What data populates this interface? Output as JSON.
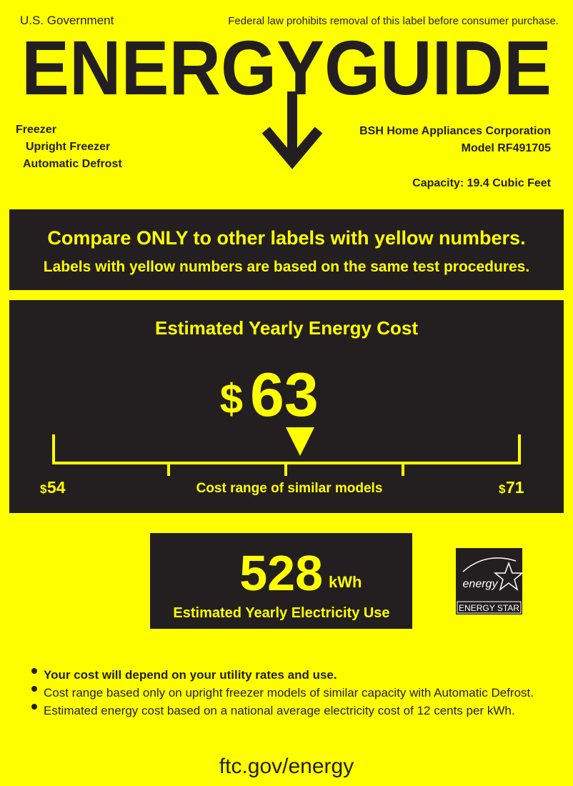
{
  "header": {
    "left": "U.S. Government",
    "right": "Federal law prohibits removal of this label before consumer purchase.",
    "title": "ENERGYGUIDE"
  },
  "product": {
    "lines": [
      "Freezer",
      "Upright Freezer",
      "Automatic Defrost"
    ]
  },
  "manufacturer": {
    "name": "BSH Home Appliances Corporation",
    "model": "Model RF491705",
    "capacity": "Capacity: 19.4 Cubic Feet"
  },
  "notice": {
    "title": "Compare ONLY to other labels with yellow numbers.",
    "subtitle": "Labels with yellow numbers are based on the same test procedures."
  },
  "cost": {
    "title": "Estimated Yearly Energy Cost",
    "currency": "$",
    "amount": "63",
    "range_low": {
      "currency": "$",
      "amount": "54"
    },
    "range_label": "Cost range of similar models",
    "range_high": {
      "currency": "$",
      "amount": "71"
    }
  },
  "electricity": {
    "amount": "528",
    "unit": "kWh",
    "label": "Estimated Yearly Electricity Use"
  },
  "energy_star": {
    "logo_text": "energy",
    "label": "ENERGY STAR"
  },
  "notes": [
    "Your cost will depend on your utility rates and use.",
    "Cost range based only on upright freezer models of similar capacity with Automatic Defrost.",
    "Estimated energy cost based on a national average electricity cost of 12 cents per kWh."
  ],
  "footer": {
    "url": "ftc.gov/energy"
  }
}
